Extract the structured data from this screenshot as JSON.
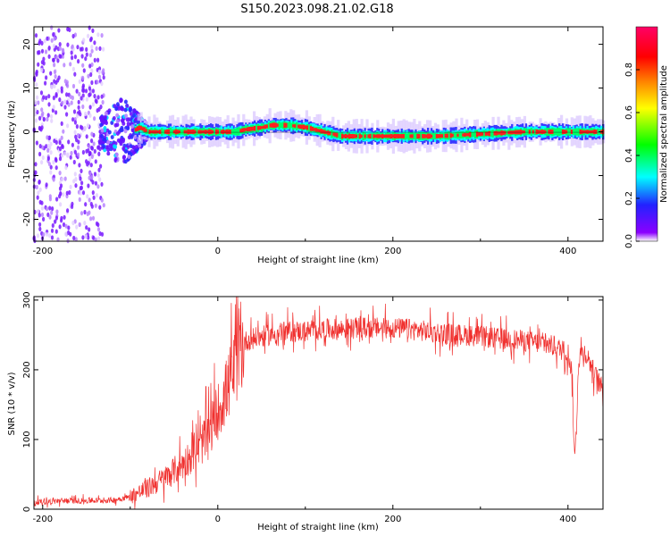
{
  "figure_title": "S150.2023.098.21.02.G18",
  "colors": {
    "snr_line": "#f0302e",
    "axis": "#000000",
    "background": "#ffffff",
    "colormap": [
      "#ffffff",
      "#8b00ff",
      "#2222ff",
      "#00ffff",
      "#00ff00",
      "#ffff00",
      "#ff8800",
      "#ff0000",
      "#ff0066"
    ]
  },
  "chart_data": [
    {
      "type": "heatmap",
      "xlabel": "Height of straight line (km)",
      "ylabel": "Frequency (Hz)",
      "xlim": [
        -210,
        440
      ],
      "ylim": [
        -25,
        24
      ],
      "xticks": [
        -200,
        0,
        200,
        400
      ],
      "yticks": [
        -20,
        -10,
        0,
        10,
        20
      ],
      "colorbar": {
        "label": "Normalized spectral amplitude",
        "range": [
          0,
          1
        ],
        "ticks": [
          0.0,
          0.2,
          0.4,
          0.6,
          0.8
        ]
      },
      "ridge": {
        "x": [
          -100,
          -90,
          -80,
          -60,
          -40,
          -20,
          0,
          10,
          20,
          30,
          50,
          60,
          80,
          100,
          120,
          140,
          160,
          200,
          250,
          300,
          350,
          400,
          440
        ],
        "frequency_hz": [
          0,
          1,
          0,
          0,
          0,
          0,
          0,
          0,
          0,
          0.5,
          1,
          1.5,
          1.5,
          1,
          0,
          -1,
          -1,
          -1,
          -1,
          -0.5,
          0,
          0,
          0
        ]
      },
      "noise_region": {
        "x_from": -210,
        "x_to": -130
      }
    },
    {
      "type": "line",
      "xlabel": "Height of straight line (km)",
      "ylabel": "SNR (10 * v/v)",
      "xlim": [
        -210,
        440
      ],
      "ylim": [
        0,
        305
      ],
      "xticks": [
        -200,
        0,
        200,
        400
      ],
      "yticks": [
        0,
        100,
        200,
        300
      ],
      "series": [
        {
          "x": [
            -210,
            -180,
            -150,
            -120,
            -100,
            -80,
            -60,
            -40,
            -20,
            -10,
            0,
            10,
            20,
            30,
            40,
            60,
            80,
            100,
            120,
            140,
            160,
            180,
            200,
            220,
            240,
            260,
            280,
            300,
            320,
            340,
            360,
            380,
            400,
            404,
            406,
            408,
            410,
            412,
            416,
            420,
            425,
            430,
            440
          ],
          "y": [
            10,
            12,
            12,
            13,
            18,
            30,
            45,
            65,
            90,
            110,
            140,
            170,
            205,
            240,
            245,
            250,
            255,
            255,
            258,
            258,
            260,
            260,
            260,
            258,
            255,
            252,
            250,
            248,
            245,
            243,
            240,
            235,
            225,
            200,
            130,
            70,
            130,
            215,
            225,
            225,
            210,
            195,
            170
          ]
        }
      ]
    }
  ]
}
